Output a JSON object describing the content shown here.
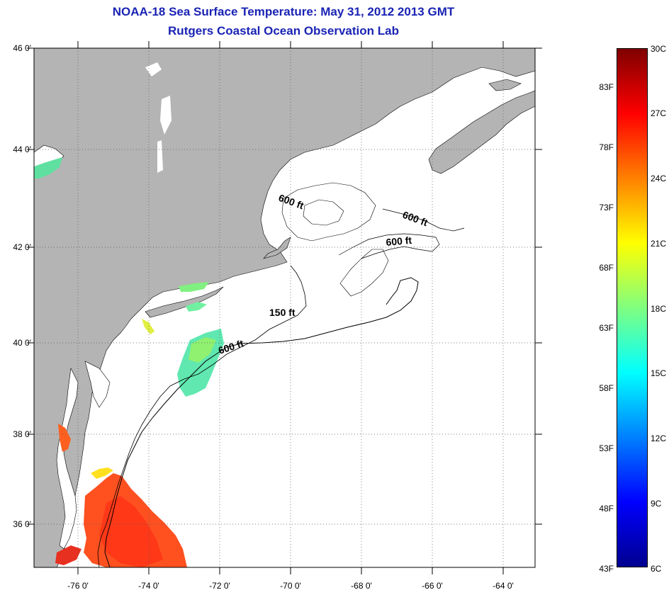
{
  "title": {
    "line1": "NOAA-18 Sea Surface Temperature:  May 31, 2012 2013 GMT",
    "line2": "Rutgers Coastal Ocean Observation Lab"
  },
  "map": {
    "lat_labels": [
      "46 0'",
      "44 0'",
      "42 0'",
      "40 0'",
      "38 0'",
      "36 0'"
    ],
    "lon_labels": [
      "-76 0'",
      "-74 0'",
      "-72 0'",
      "-70 0'",
      "-68 0'",
      "-66 0'",
      "-64 0'"
    ],
    "contour_labels": [
      "600 ft",
      "600 ft",
      "600 ft",
      "150 ft",
      "600 ft"
    ],
    "land_color": "#b4b4b4",
    "ocean_color": "#ffffff"
  },
  "colorbar": {
    "fahrenheit_labels": [
      "83F",
      "78F",
      "73F",
      "68F",
      "63F",
      "58F",
      "53F",
      "48F",
      "43F"
    ],
    "celsius_labels": [
      "30C",
      "27C",
      "24C",
      "21C",
      "18C",
      "15C",
      "12C",
      "9C",
      "6C"
    ],
    "colors": [
      "#00008f",
      "#0000ff",
      "#0080ff",
      "#00ffff",
      "#80ff80",
      "#ffff00",
      "#ff8000",
      "#ff0000",
      "#800000"
    ]
  }
}
